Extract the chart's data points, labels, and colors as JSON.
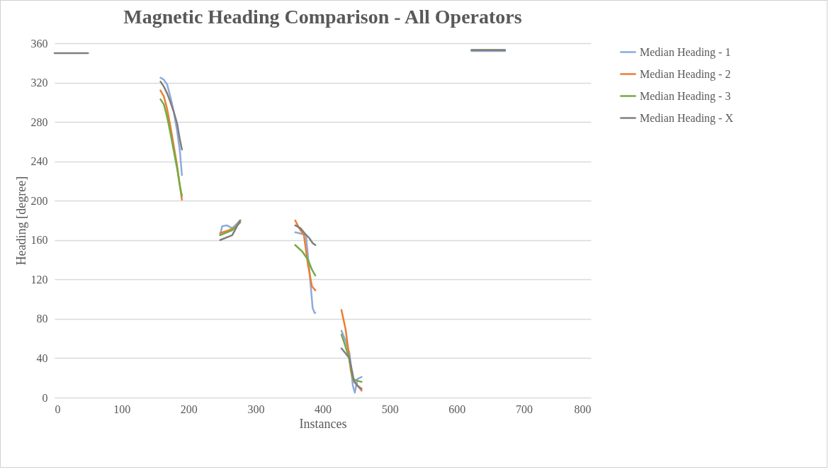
{
  "chart_data": {
    "type": "line",
    "title": "Magnetic Heading Comparison - All Operators",
    "xlabel": "Instances",
    "ylabel": "Heading [degree]",
    "xlim": [
      0,
      800
    ],
    "xticks": [
      0,
      100,
      200,
      300,
      400,
      500,
      600,
      700,
      800
    ],
    "ylim": [
      0,
      360
    ],
    "yticks": [
      0,
      40,
      80,
      120,
      160,
      200,
      240,
      280,
      320,
      360
    ],
    "grid": "y",
    "legend": "right",
    "marker": "none",
    "line_style": "solid",
    "series": [
      {
        "name": "Median Heading - 1",
        "color": "#8faadc",
        "x": [
          158,
          163,
          168,
          173,
          178,
          183,
          187,
          190,
          218,
          247,
          250,
          257,
          265,
          277,
          318,
          359,
          365,
          375,
          380,
          385,
          388,
          389,
          420,
          428,
          434,
          440,
          445,
          448,
          452,
          458,
          540,
          622,
          672
        ],
        "values": [
          325,
          323,
          318,
          305,
          290,
          270,
          250,
          226,
          null,
          165,
          174,
          175,
          172,
          180,
          null,
          168,
          167,
          165,
          130,
          91,
          86,
          86,
          null,
          68,
          58,
          45,
          12,
          5,
          19,
          21,
          null,
          352,
          352
        ]
      },
      {
        "name": "Median Heading - 2",
        "color": "#ed7d31",
        "x": [
          158,
          163,
          168,
          173,
          178,
          183,
          187,
          190,
          218,
          247,
          260,
          270,
          277,
          318,
          359,
          365,
          372,
          378,
          384,
          389,
          420,
          428,
          434,
          438,
          442,
          445,
          450,
          458,
          540,
          622,
          672
        ],
        "values": [
          312,
          306,
          293,
          275,
          255,
          235,
          215,
          201,
          null,
          167,
          170,
          173,
          180,
          null,
          180,
          172,
          165,
          135,
          113,
          109,
          null,
          89,
          70,
          50,
          27,
          19,
          14,
          7,
          null,
          353,
          353
        ]
      },
      {
        "name": "Median Heading - 3",
        "color": "#70ad47",
        "x": [
          158,
          163,
          168,
          173,
          178,
          183,
          187,
          190,
          218,
          247,
          265,
          277,
          318,
          359,
          370,
          378,
          384,
          389,
          420,
          428,
          434,
          439,
          445,
          452,
          458,
          540,
          622,
          672
        ],
        "values": [
          303,
          298,
          285,
          268,
          250,
          232,
          215,
          205,
          null,
          165,
          170,
          178,
          null,
          155,
          148,
          140,
          130,
          124,
          null,
          64,
          52,
          41,
          19,
          17,
          16,
          null,
          353,
          353
        ]
      },
      {
        "name": "Median Heading - X",
        "color": "#7f7f7f",
        "x": [
          0,
          50,
          105,
          158,
          163,
          168,
          173,
          178,
          183,
          187,
          190,
          218,
          247,
          265,
          277,
          318,
          359,
          367,
          373,
          380,
          385,
          389,
          420,
          428,
          434,
          440,
          447,
          452,
          458,
          540,
          622,
          672
        ],
        "values": [
          350,
          350,
          null,
          321,
          316,
          309,
          300,
          290,
          278,
          262,
          252,
          null,
          160,
          165,
          180,
          null,
          175,
          172,
          167,
          162,
          157,
          155,
          null,
          50,
          45,
          40,
          16,
          12,
          9,
          null,
          353,
          353
        ]
      }
    ]
  }
}
